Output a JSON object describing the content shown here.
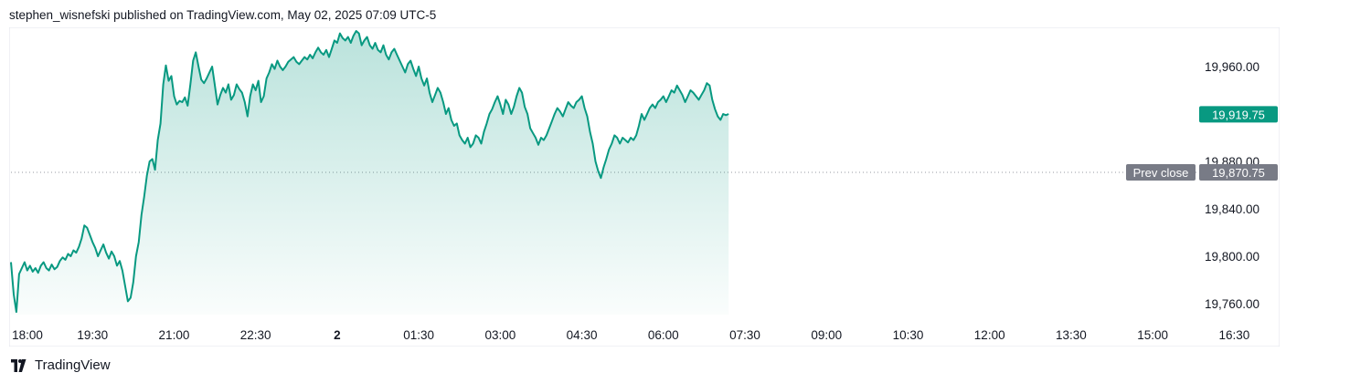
{
  "header": {
    "publisher_line": "stephen_wisnefski published on TradingView.com, May 02, 2025 07:09 UTC-5"
  },
  "footer": {
    "brand": "TradingView",
    "logo_icon": "tradingview-logo-icon"
  },
  "colors": {
    "line": "#089981",
    "fill_top": "#089981",
    "last_price_bg": "#089981",
    "prev_close_bg": "#787b86",
    "axis_text": "#131722",
    "grid": "#f0f3fa"
  },
  "chart_data": {
    "type": "area",
    "title": "",
    "xlabel": "",
    "ylabel": "",
    "ylim": [
      19750,
      20000
    ],
    "y_ticks": [
      19760,
      19800,
      19840,
      19880,
      19960
    ],
    "y_tick_labels": [
      "19,760.00",
      "19,800.00",
      "19,840.00",
      "19,880.00",
      "19,960.00"
    ],
    "x_ticks": [
      {
        "label": "18:00",
        "t": 0,
        "bold": false
      },
      {
        "label": "19:30",
        "t": 90,
        "bold": false
      },
      {
        "label": "21:00",
        "t": 180,
        "bold": false
      },
      {
        "label": "22:30",
        "t": 270,
        "bold": false
      },
      {
        "label": "2",
        "t": 360,
        "bold": true
      },
      {
        "label": "01:30",
        "t": 450,
        "bold": false
      },
      {
        "label": "03:00",
        "t": 540,
        "bold": false
      },
      {
        "label": "04:30",
        "t": 630,
        "bold": false
      },
      {
        "label": "06:00",
        "t": 720,
        "bold": false
      },
      {
        "label": "07:30",
        "t": 810,
        "bold": false
      },
      {
        "label": "09:00",
        "t": 900,
        "bold": false
      },
      {
        "label": "10:30",
        "t": 990,
        "bold": false
      },
      {
        "label": "12:00",
        "t": 1080,
        "bold": false
      },
      {
        "label": "13:30",
        "t": 1170,
        "bold": false
      },
      {
        "label": "15:00",
        "t": 1260,
        "bold": false
      },
      {
        "label": "16:30",
        "t": 1350,
        "bold": false
      }
    ],
    "x_range_minutes": [
      0,
      1395
    ],
    "series": [
      {
        "points": [
          [
            0,
            19795
          ],
          [
            3,
            19768
          ],
          [
            6,
            19753
          ],
          [
            9,
            19785
          ],
          [
            12,
            19790
          ],
          [
            15,
            19795
          ],
          [
            18,
            19788
          ],
          [
            21,
            19792
          ],
          [
            24,
            19787
          ],
          [
            27,
            19790
          ],
          [
            30,
            19786
          ],
          [
            33,
            19792
          ],
          [
            36,
            19795
          ],
          [
            39,
            19790
          ],
          [
            42,
            19788
          ],
          [
            45,
            19793
          ],
          [
            48,
            19789
          ],
          [
            51,
            19791
          ],
          [
            54,
            19796
          ],
          [
            57,
            19799
          ],
          [
            60,
            19797
          ],
          [
            63,
            19802
          ],
          [
            66,
            19800
          ],
          [
            69,
            19805
          ],
          [
            72,
            19803
          ],
          [
            75,
            19808
          ],
          [
            78,
            19815
          ],
          [
            81,
            19826
          ],
          [
            84,
            19824
          ],
          [
            87,
            19818
          ],
          [
            90,
            19812
          ],
          [
            93,
            19807
          ],
          [
            96,
            19800
          ],
          [
            99,
            19805
          ],
          [
            102,
            19810
          ],
          [
            105,
            19803
          ],
          [
            108,
            19798
          ],
          [
            111,
            19804
          ],
          [
            114,
            19800
          ],
          [
            117,
            19792
          ],
          [
            120,
            19796
          ],
          [
            123,
            19788
          ],
          [
            126,
            19775
          ],
          [
            129,
            19762
          ],
          [
            132,
            19765
          ],
          [
            135,
            19778
          ],
          [
            138,
            19800
          ],
          [
            141,
            19812
          ],
          [
            144,
            19835
          ],
          [
            147,
            19850
          ],
          [
            150,
            19868
          ],
          [
            153,
            19880
          ],
          [
            156,
            19882
          ],
          [
            159,
            19873
          ],
          [
            162,
            19898
          ],
          [
            165,
            19912
          ],
          [
            168,
            19945
          ],
          [
            171,
            19961
          ],
          [
            174,
            19948
          ],
          [
            177,
            19952
          ],
          [
            180,
            19935
          ],
          [
            183,
            19928
          ],
          [
            186,
            19931
          ],
          [
            189,
            19930
          ],
          [
            192,
            19934
          ],
          [
            195,
            19927
          ],
          [
            198,
            19945
          ],
          [
            201,
            19965
          ],
          [
            204,
            19972
          ],
          [
            207,
            19960
          ],
          [
            210,
            19949
          ],
          [
            213,
            19946
          ],
          [
            216,
            19950
          ],
          [
            219,
            19955
          ],
          [
            222,
            19960
          ],
          [
            225,
            19944
          ],
          [
            228,
            19928
          ],
          [
            231,
            19936
          ],
          [
            234,
            19942
          ],
          [
            237,
            19938
          ],
          [
            240,
            19945
          ],
          [
            243,
            19932
          ],
          [
            246,
            19936
          ],
          [
            249,
            19945
          ],
          [
            252,
            19941
          ],
          [
            255,
            19938
          ],
          [
            258,
            19930
          ],
          [
            261,
            19918
          ],
          [
            264,
            19935
          ],
          [
            267,
            19945
          ],
          [
            270,
            19940
          ],
          [
            273,
            19948
          ],
          [
            276,
            19930
          ],
          [
            279,
            19935
          ],
          [
            282,
            19950
          ],
          [
            285,
            19955
          ],
          [
            288,
            19962
          ],
          [
            291,
            19958
          ],
          [
            294,
            19965
          ],
          [
            297,
            19960
          ],
          [
            300,
            19957
          ],
          [
            303,
            19960
          ],
          [
            306,
            19964
          ],
          [
            309,
            19966
          ],
          [
            312,
            19968
          ],
          [
            315,
            19964
          ],
          [
            318,
            19962
          ],
          [
            321,
            19965
          ],
          [
            324,
            19968
          ],
          [
            327,
            19966
          ],
          [
            330,
            19970
          ],
          [
            333,
            19967
          ],
          [
            336,
            19972
          ],
          [
            339,
            19976
          ],
          [
            342,
            19972
          ],
          [
            345,
            19970
          ],
          [
            348,
            19974
          ],
          [
            351,
            19968
          ],
          [
            354,
            19975
          ],
          [
            357,
            19982
          ],
          [
            360,
            19980
          ],
          [
            363,
            19988
          ],
          [
            366,
            19984
          ],
          [
            369,
            19982
          ],
          [
            372,
            19985
          ],
          [
            375,
            19980
          ],
          [
            378,
            19986
          ],
          [
            381,
            19990
          ],
          [
            384,
            19988
          ],
          [
            387,
            19978
          ],
          [
            390,
            19982
          ],
          [
            393,
            19985
          ],
          [
            396,
            19978
          ],
          [
            399,
            19975
          ],
          [
            402,
            19980
          ],
          [
            405,
            19974
          ],
          [
            408,
            19972
          ],
          [
            411,
            19978
          ],
          [
            414,
            19970
          ],
          [
            417,
            19966
          ],
          [
            420,
            19972
          ],
          [
            423,
            19975
          ],
          [
            426,
            19970
          ],
          [
            429,
            19965
          ],
          [
            432,
            19960
          ],
          [
            435,
            19955
          ],
          [
            438,
            19962
          ],
          [
            441,
            19965
          ],
          [
            444,
            19958
          ],
          [
            447,
            19952
          ],
          [
            450,
            19960
          ],
          [
            453,
            19950
          ],
          [
            456,
            19944
          ],
          [
            459,
            19950
          ],
          [
            462,
            19938
          ],
          [
            465,
            19930
          ],
          [
            468,
            19936
          ],
          [
            471,
            19942
          ],
          [
            474,
            19938
          ],
          [
            477,
            19930
          ],
          [
            480,
            19920
          ],
          [
            483,
            19925
          ],
          [
            486,
            19915
          ],
          [
            489,
            19910
          ],
          [
            492,
            19912
          ],
          [
            495,
            19902
          ],
          [
            498,
            19898
          ],
          [
            501,
            19895
          ],
          [
            504,
            19900
          ],
          [
            507,
            19892
          ],
          [
            510,
            19895
          ],
          [
            513,
            19902
          ],
          [
            516,
            19900
          ],
          [
            519,
            19895
          ],
          [
            522,
            19905
          ],
          [
            525,
            19912
          ],
          [
            528,
            19920
          ],
          [
            531,
            19924
          ],
          [
            534,
            19930
          ],
          [
            537,
            19935
          ],
          [
            540,
            19928
          ],
          [
            543,
            19920
          ],
          [
            546,
            19932
          ],
          [
            549,
            19928
          ],
          [
            552,
            19920
          ],
          [
            555,
            19926
          ],
          [
            558,
            19935
          ],
          [
            561,
            19942
          ],
          [
            564,
            19938
          ],
          [
            567,
            19926
          ],
          [
            570,
            19920
          ],
          [
            573,
            19908
          ],
          [
            576,
            19904
          ],
          [
            579,
            19900
          ],
          [
            582,
            19894
          ],
          [
            585,
            19900
          ],
          [
            588,
            19898
          ],
          [
            591,
            19902
          ],
          [
            594,
            19908
          ],
          [
            597,
            19914
          ],
          [
            600,
            19920
          ],
          [
            603,
            19925
          ],
          [
            606,
            19922
          ],
          [
            609,
            19918
          ],
          [
            612,
            19924
          ],
          [
            615,
            19930
          ],
          [
            618,
            19927
          ],
          [
            621,
            19925
          ],
          [
            624,
            19930
          ],
          [
            627,
            19932
          ],
          [
            630,
            19935
          ],
          [
            633,
            19925
          ],
          [
            636,
            19918
          ],
          [
            639,
            19905
          ],
          [
            642,
            19895
          ],
          [
            645,
            19880
          ],
          [
            648,
            19872
          ],
          [
            651,
            19866
          ],
          [
            654,
            19875
          ],
          [
            657,
            19882
          ],
          [
            660,
            19890
          ],
          [
            663,
            19895
          ],
          [
            666,
            19902
          ],
          [
            669,
            19900
          ],
          [
            672,
            19895
          ],
          [
            675,
            19900
          ],
          [
            678,
            19898
          ],
          [
            681,
            19896
          ],
          [
            684,
            19900
          ],
          [
            687,
            19898
          ],
          [
            690,
            19902
          ],
          [
            693,
            19910
          ],
          [
            696,
            19920
          ],
          [
            699,
            19915
          ],
          [
            702,
            19920
          ],
          [
            705,
            19925
          ],
          [
            708,
            19928
          ],
          [
            711,
            19925
          ],
          [
            714,
            19930
          ],
          [
            717,
            19932
          ],
          [
            720,
            19935
          ],
          [
            723,
            19930
          ],
          [
            726,
            19935
          ],
          [
            729,
            19940
          ],
          [
            732,
            19938
          ],
          [
            735,
            19944
          ],
          [
            738,
            19940
          ],
          [
            741,
            19936
          ],
          [
            744,
            19930
          ],
          [
            747,
            19935
          ],
          [
            750,
            19940
          ],
          [
            753,
            19938
          ],
          [
            756,
            19935
          ],
          [
            759,
            19932
          ],
          [
            762,
            19936
          ],
          [
            765,
            19940
          ],
          [
            768,
            19946
          ],
          [
            771,
            19944
          ],
          [
            774,
            19932
          ],
          [
            777,
            19924
          ],
          [
            780,
            19918
          ],
          [
            783,
            19915
          ],
          [
            786,
            19920
          ],
          [
            789,
            19919
          ],
          [
            792,
            19920
          ]
        ]
      }
    ],
    "last_price": {
      "value": 19919.75,
      "label": "19,919.75"
    },
    "prev_close": {
      "value": 19870.75,
      "label": "19,870.75",
      "tag": "Prev close"
    }
  }
}
